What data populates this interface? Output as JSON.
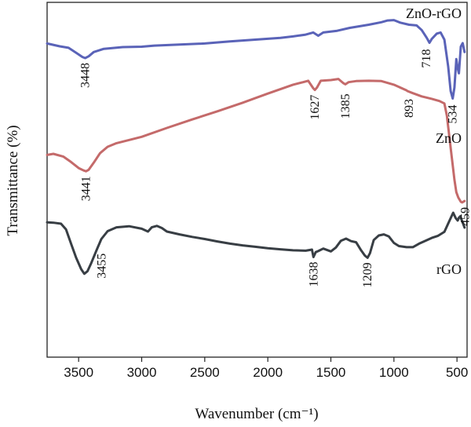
{
  "chart_data": {
    "type": "line",
    "title": "",
    "xlabel": "Wavenumber (cm⁻¹)",
    "ylabel": "Transmittance (%)",
    "x_reversed": true,
    "xlim": [
      3750,
      420
    ],
    "ylim": [
      0,
      100
    ],
    "x_ticks": [
      3500,
      3000,
      2500,
      2000,
      1500,
      1000,
      500
    ],
    "grid": false,
    "series": [
      {
        "name": "ZnO-rGO",
        "color": "#5a63b8",
        "points": [
          [
            3750,
            88.4
          ],
          [
            3650,
            87.6
          ],
          [
            3580,
            87.2
          ],
          [
            3520,
            85.8
          ],
          [
            3470,
            84.6
          ],
          [
            3448,
            84.3
          ],
          [
            3420,
            84.8
          ],
          [
            3380,
            86.0
          ],
          [
            3300,
            86.9
          ],
          [
            3150,
            87.4
          ],
          [
            3000,
            87.5
          ],
          [
            2900,
            87.8
          ],
          [
            2700,
            88.1
          ],
          [
            2500,
            88.4
          ],
          [
            2300,
            89.0
          ],
          [
            2100,
            89.5
          ],
          [
            1900,
            90.0
          ],
          [
            1800,
            90.4
          ],
          [
            1700,
            90.9
          ],
          [
            1640,
            91.5
          ],
          [
            1600,
            90.6
          ],
          [
            1560,
            91.5
          ],
          [
            1450,
            92.0
          ],
          [
            1350,
            92.8
          ],
          [
            1200,
            93.7
          ],
          [
            1100,
            94.4
          ],
          [
            1050,
            94.9
          ],
          [
            1000,
            95.0
          ],
          [
            950,
            94.3
          ],
          [
            880,
            93.7
          ],
          [
            820,
            93.5
          ],
          [
            780,
            92.2
          ],
          [
            740,
            90.0
          ],
          [
            718,
            88.6
          ],
          [
            700,
            89.7
          ],
          [
            660,
            91.2
          ],
          [
            630,
            91.5
          ],
          [
            600,
            89.5
          ],
          [
            570,
            82.0
          ],
          [
            550,
            75.0
          ],
          [
            534,
            72.9
          ],
          [
            520,
            76.0
          ],
          [
            505,
            84.0
          ],
          [
            495,
            81.5
          ],
          [
            485,
            80.0
          ],
          [
            470,
            87.5
          ],
          [
            455,
            88.5
          ],
          [
            440,
            86.0
          ]
        ]
      },
      {
        "name": "ZnO",
        "color": "#c46a6a",
        "points": [
          [
            3750,
            57.0
          ],
          [
            3700,
            57.3
          ],
          [
            3620,
            56.5
          ],
          [
            3560,
            55.0
          ],
          [
            3500,
            53.3
          ],
          [
            3460,
            52.6
          ],
          [
            3441,
            52.4
          ],
          [
            3420,
            52.8
          ],
          [
            3380,
            54.8
          ],
          [
            3330,
            57.5
          ],
          [
            3270,
            59.3
          ],
          [
            3200,
            60.3
          ],
          [
            3000,
            62.1
          ],
          [
            2800,
            64.6
          ],
          [
            2600,
            67.0
          ],
          [
            2400,
            69.3
          ],
          [
            2200,
            71.7
          ],
          [
            2000,
            74.3
          ],
          [
            1800,
            76.8
          ],
          [
            1720,
            77.5
          ],
          [
            1680,
            77.9
          ],
          [
            1640,
            75.8
          ],
          [
            1627,
            75.3
          ],
          [
            1610,
            76.0
          ],
          [
            1580,
            77.9
          ],
          [
            1500,
            78.1
          ],
          [
            1440,
            78.4
          ],
          [
            1400,
            77.2
          ],
          [
            1385,
            76.9
          ],
          [
            1360,
            77.5
          ],
          [
            1300,
            77.8
          ],
          [
            1200,
            77.9
          ],
          [
            1100,
            77.8
          ],
          [
            1000,
            76.8
          ],
          [
            900,
            75.2
          ],
          [
            893,
            75.0
          ],
          [
            850,
            74.4
          ],
          [
            780,
            73.5
          ],
          [
            700,
            72.8
          ],
          [
            640,
            72.2
          ],
          [
            600,
            71.5
          ],
          [
            580,
            68.0
          ],
          [
            560,
            62.0
          ],
          [
            540,
            56.0
          ],
          [
            520,
            50.0
          ],
          [
            505,
            46.5
          ],
          [
            490,
            45.0
          ],
          [
            470,
            43.8
          ],
          [
            459,
            43.6
          ],
          [
            440,
            44.0
          ]
        ]
      },
      {
        "name": "rGO",
        "color": "#383e44",
        "points": [
          [
            3750,
            38.0
          ],
          [
            3700,
            37.9
          ],
          [
            3640,
            37.6
          ],
          [
            3600,
            36.0
          ],
          [
            3560,
            32.0
          ],
          [
            3520,
            28.0
          ],
          [
            3480,
            24.8
          ],
          [
            3455,
            23.5
          ],
          [
            3430,
            24.2
          ],
          [
            3400,
            26.5
          ],
          [
            3360,
            30.0
          ],
          [
            3320,
            33.3
          ],
          [
            3270,
            35.5
          ],
          [
            3200,
            36.6
          ],
          [
            3100,
            36.9
          ],
          [
            3000,
            36.2
          ],
          [
            2950,
            35.4
          ],
          [
            2920,
            36.6
          ],
          [
            2880,
            37.0
          ],
          [
            2840,
            36.4
          ],
          [
            2800,
            35.4
          ],
          [
            2700,
            34.6
          ],
          [
            2600,
            33.9
          ],
          [
            2500,
            33.3
          ],
          [
            2400,
            32.6
          ],
          [
            2300,
            32.0
          ],
          [
            2200,
            31.5
          ],
          [
            2100,
            31.1
          ],
          [
            2000,
            30.7
          ],
          [
            1900,
            30.4
          ],
          [
            1800,
            30.1
          ],
          [
            1700,
            30.0
          ],
          [
            1650,
            30.3
          ],
          [
            1638,
            28.2
          ],
          [
            1620,
            29.6
          ],
          [
            1600,
            29.9
          ],
          [
            1560,
            30.6
          ],
          [
            1500,
            29.8
          ],
          [
            1460,
            30.9
          ],
          [
            1420,
            32.8
          ],
          [
            1380,
            33.4
          ],
          [
            1340,
            32.7
          ],
          [
            1300,
            32.4
          ],
          [
            1260,
            30.1
          ],
          [
            1230,
            28.6
          ],
          [
            1209,
            28.0
          ],
          [
            1190,
            29.3
          ],
          [
            1160,
            33.0
          ],
          [
            1120,
            34.3
          ],
          [
            1080,
            34.6
          ],
          [
            1040,
            34.0
          ],
          [
            1000,
            32.2
          ],
          [
            960,
            31.3
          ],
          [
            900,
            31.0
          ],
          [
            850,
            31.0
          ],
          [
            800,
            32.0
          ],
          [
            750,
            32.8
          ],
          [
            700,
            33.6
          ],
          [
            650,
            34.2
          ],
          [
            600,
            35.3
          ],
          [
            560,
            38.4
          ],
          [
            530,
            40.7
          ],
          [
            510,
            39.2
          ],
          [
            495,
            38.5
          ],
          [
            485,
            39.3
          ],
          [
            475,
            39.7
          ],
          [
            460,
            38.4
          ],
          [
            440,
            36.5
          ]
        ]
      }
    ],
    "series_labels": [
      "ZnO-rGO",
      "ZnO",
      "rGO"
    ],
    "annotations": [
      {
        "text": "3448",
        "x": 3448,
        "y": 84.3
      },
      {
        "text": "718",
        "x": 718,
        "y": 88.6
      },
      {
        "text": "534",
        "x": 534,
        "y": 72.9
      },
      {
        "text": "3441",
        "x": 3441,
        "y": 52.4
      },
      {
        "text": "1627",
        "x": 1627,
        "y": 75.3
      },
      {
        "text": "1385",
        "x": 1385,
        "y": 76.9
      },
      {
        "text": "893",
        "x": 893,
        "y": 75.0
      },
      {
        "text": "459",
        "x": 459,
        "y": 43.6
      },
      {
        "text": "3455",
        "x": 3455,
        "y": 23.5
      },
      {
        "text": "1638",
        "x": 1638,
        "y": 28.2
      },
      {
        "text": "1209",
        "x": 1209,
        "y": 28.0
      }
    ]
  }
}
